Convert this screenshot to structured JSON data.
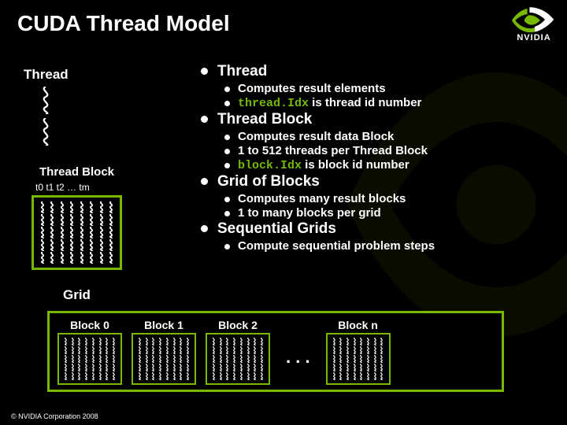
{
  "title": "CUDA Thread Model",
  "logo_text": "NVIDIA",
  "colors": {
    "bg": "#000000",
    "text": "#ffffff",
    "accent": "#76b900",
    "squiggle": "#ffffff"
  },
  "left": {
    "thread_label": "Thread",
    "block_label": "Thread Block",
    "block_tlabels": "t0 t1 t2 … tm",
    "grid_label": "Grid"
  },
  "bullets": [
    {
      "level": 1,
      "text": "Thread"
    },
    {
      "level": 2,
      "text": "Computes result elements"
    },
    {
      "level": 2,
      "html": "<span class='code'>thread.Idx</span> is thread id number"
    },
    {
      "level": 1,
      "text": "Thread Block"
    },
    {
      "level": 2,
      "text": "Computes result data Block"
    },
    {
      "level": 2,
      "text": "1 to 512 threads per Thread Block"
    },
    {
      "level": 2,
      "html": "<span class='code'>block.Idx</span> is block id number"
    },
    {
      "level": 1,
      "text": "Grid of Blocks"
    },
    {
      "level": 2,
      "text": "Computes many result blocks"
    },
    {
      "level": 2,
      "text": "1 to many blocks per grid"
    },
    {
      "level": 1,
      "text": "Sequential Grids"
    },
    {
      "level": 2,
      "text": "Compute sequential problem steps"
    }
  ],
  "grid_blocks": {
    "labels": [
      "Block 0",
      "Block 1",
      "Block 2",
      "Block n"
    ],
    "ellipsis": ". . ."
  },
  "copyright": "© NVIDIA Corporation 2008",
  "big_block": {
    "rows": 5,
    "cols": 8
  },
  "small_block": {
    "rows": 5,
    "cols": 8
  }
}
